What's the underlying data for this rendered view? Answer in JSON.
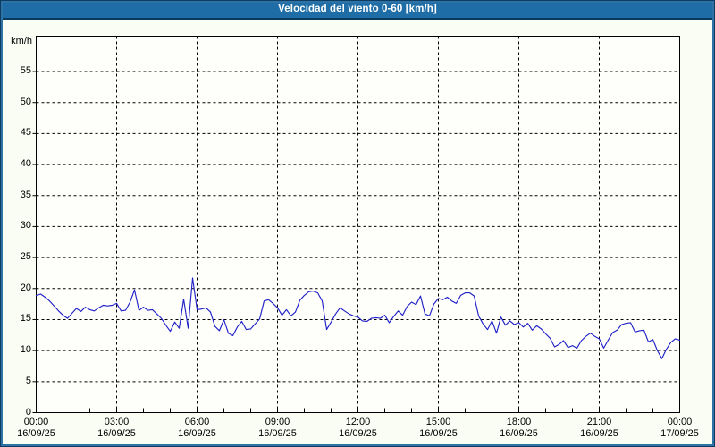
{
  "window": {
    "title": "Velocidad del viento 0-60 [km/h]"
  },
  "colors": {
    "titlebar_bg": "#1e6da6",
    "titlebar_text": "#ffffff",
    "frame_outer": "#0d3c63",
    "frame_inner": "#2f73a6",
    "page_bg": "#fafdf4",
    "plot_bg": "#fefffb",
    "grid": "#000000",
    "axis": "#000000",
    "label_text": "#000000",
    "series": "#2121c8"
  },
  "chart_data": {
    "type": "line",
    "title": "Velocidad del viento 0-60 [km/h]",
    "ylabel": "km/h",
    "xlabel": "",
    "ylim": [
      0,
      60
    ],
    "ytick_step": 5,
    "yticks": [
      0,
      5,
      10,
      15,
      20,
      25,
      30,
      35,
      40,
      45,
      50,
      55
    ],
    "grid": "dashed",
    "legend": "none",
    "x_start": "16/09/25 00:00",
    "x_end": "17/09/25 00:00",
    "xtick_interval_hours": 3,
    "minor_xtick_hours": 1,
    "sample_interval_minutes": 10,
    "xticks": [
      {
        "time": "00:00",
        "date": "16/09/25"
      },
      {
        "time": "03:00",
        "date": "16/09/25"
      },
      {
        "time": "06:00",
        "date": "16/09/25"
      },
      {
        "time": "09:00",
        "date": "16/09/25"
      },
      {
        "time": "12:00",
        "date": "16/09/25"
      },
      {
        "time": "15:00",
        "date": "16/09/25"
      },
      {
        "time": "18:00",
        "date": "16/09/25"
      },
      {
        "time": "21:00",
        "date": "16/09/25"
      },
      {
        "time": "00:00",
        "date": "17/09/25"
      }
    ],
    "series": [
      {
        "name": "Velocidad del viento [km/h]",
        "color": "#2121c8",
        "values": [
          18.9,
          19.1,
          18.6,
          18.0,
          17.2,
          16.4,
          15.7,
          15.2,
          16.0,
          16.8,
          16.3,
          17.0,
          16.6,
          16.4,
          16.9,
          17.3,
          17.2,
          17.3,
          17.6,
          16.4,
          16.5,
          17.8,
          19.8,
          16.5,
          17.0,
          16.5,
          16.6,
          15.9,
          15.2,
          14.1,
          13.1,
          14.6,
          13.6,
          18.3,
          13.6,
          21.7,
          16.6,
          16.7,
          16.9,
          16.2,
          13.9,
          13.2,
          15.0,
          12.8,
          12.4,
          13.8,
          14.7,
          13.4,
          13.5,
          14.3,
          15.1,
          18.0,
          18.2,
          17.6,
          16.9,
          15.7,
          16.6,
          15.6,
          16.2,
          18.1,
          18.9,
          19.5,
          19.6,
          19.3,
          18.0,
          13.4,
          14.6,
          15.9,
          16.9,
          16.4,
          15.9,
          15.6,
          15.4,
          14.8,
          14.7,
          15.2,
          15.3,
          15.2,
          15.7,
          14.5,
          15.5,
          16.4,
          15.7,
          17.1,
          17.8,
          17.4,
          18.8,
          15.9,
          15.6,
          17.5,
          18.4,
          18.2,
          18.6,
          18.0,
          17.6,
          18.9,
          19.3,
          19.3,
          18.8,
          15.6,
          14.3,
          13.4,
          14.8,
          12.8,
          15.4,
          14.1,
          14.8,
          14.2,
          14.5,
          13.8,
          14.4,
          13.3,
          14.0,
          13.5,
          12.7,
          12.0,
          10.6,
          11.0,
          11.6,
          10.5,
          10.8,
          10.4,
          11.6,
          12.3,
          12.8,
          12.3,
          11.9,
          10.4,
          11.7,
          12.9,
          13.3,
          14.2,
          14.4,
          14.5,
          13.0,
          13.2,
          13.3,
          11.4,
          11.8,
          10.0,
          8.7,
          10.2,
          11.3,
          11.9,
          11.7
        ]
      }
    ]
  }
}
